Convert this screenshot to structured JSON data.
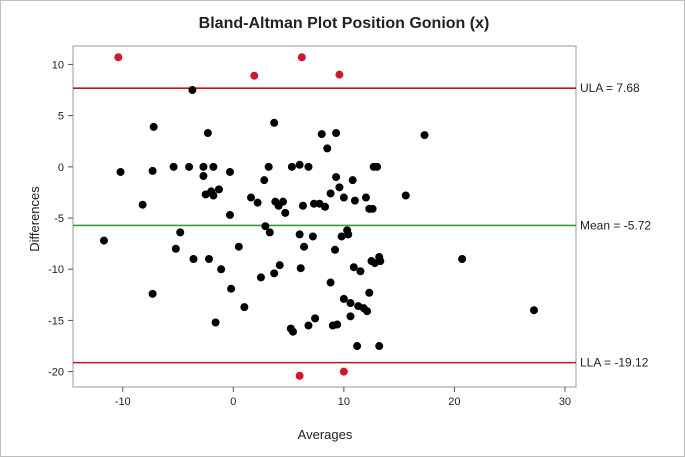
{
  "chart_data": {
    "type": "scatter",
    "title": "Bland-Altman Plot Position Gonion (x)",
    "xlabel": "Averages",
    "ylabel": "Differences",
    "xlim": [
      -14.5,
      31
    ],
    "ylim": [
      -21.5,
      11.8
    ],
    "xticks": [
      -10,
      0,
      10,
      20,
      30
    ],
    "yticks": [
      -20,
      -15,
      -10,
      -5,
      0,
      5,
      10
    ],
    "grid": false,
    "colors": {
      "inlier": "#000000",
      "outlier": "#cc1a2c",
      "limit_line": "#c0151c",
      "mean_line": "#3a9a3a"
    },
    "reference_lines": [
      {
        "label": "ULA = 7.68",
        "y": 7.68,
        "color": "#c0151c"
      },
      {
        "label": "Mean = -5.72",
        "y": -5.72,
        "color": "#3a9a3a"
      },
      {
        "label": "LLA = -19.12",
        "y": -19.12,
        "color": "#c0151c"
      }
    ],
    "series": [
      {
        "color": "#000000",
        "points": [
          [
            -11.7,
            -7.2
          ],
          [
            -10.2,
            -0.5
          ],
          [
            -8.2,
            -3.7
          ],
          [
            -7.3,
            -0.4
          ],
          [
            -7.2,
            3.9
          ],
          [
            -7.3,
            -12.4
          ],
          [
            -5.4,
            0.0
          ],
          [
            -5.2,
            -8.0
          ],
          [
            -4.8,
            -6.4
          ],
          [
            -4.0,
            0.0
          ],
          [
            -3.6,
            -9.0
          ],
          [
            -3.7,
            7.5
          ],
          [
            -2.7,
            0.0
          ],
          [
            -2.7,
            -0.9
          ],
          [
            -2.5,
            -2.7
          ],
          [
            -2.3,
            3.3
          ],
          [
            -2.2,
            -9.0
          ],
          [
            -2.0,
            -2.4
          ],
          [
            -1.8,
            0.0
          ],
          [
            -1.8,
            -2.8
          ],
          [
            -1.6,
            -15.2
          ],
          [
            -1.3,
            -2.2
          ],
          [
            -1.1,
            -10.0
          ],
          [
            -0.3,
            -0.5
          ],
          [
            -0.3,
            -4.7
          ],
          [
            -0.2,
            -11.9
          ],
          [
            0.5,
            -7.8
          ],
          [
            1.0,
            -13.7
          ],
          [
            1.6,
            -3.0
          ],
          [
            2.2,
            -3.5
          ],
          [
            2.5,
            -10.8
          ],
          [
            2.8,
            -1.3
          ],
          [
            2.9,
            -5.8
          ],
          [
            3.2,
            0.0
          ],
          [
            3.3,
            -6.4
          ],
          [
            3.7,
            4.3
          ],
          [
            3.7,
            -10.4
          ],
          [
            3.8,
            -3.4
          ],
          [
            4.1,
            -3.8
          ],
          [
            4.2,
            -9.6
          ],
          [
            4.5,
            -3.4
          ],
          [
            4.7,
            -4.5
          ],
          [
            5.2,
            -15.8
          ],
          [
            5.4,
            -16.1
          ],
          [
            5.3,
            0.0
          ],
          [
            6.0,
            0.2
          ],
          [
            6.0,
            -6.6
          ],
          [
            6.1,
            -9.9
          ],
          [
            6.3,
            -3.8
          ],
          [
            6.4,
            -7.8
          ],
          [
            6.8,
            0.0
          ],
          [
            6.8,
            -15.5
          ],
          [
            7.2,
            -6.8
          ],
          [
            7.3,
            -3.6
          ],
          [
            7.4,
            -14.8
          ],
          [
            7.8,
            -3.6
          ],
          [
            8.0,
            3.2
          ],
          [
            8.3,
            -3.9
          ],
          [
            8.5,
            1.8
          ],
          [
            8.8,
            -11.3
          ],
          [
            8.8,
            -2.6
          ],
          [
            9.0,
            -15.5
          ],
          [
            9.2,
            -8.1
          ],
          [
            9.3,
            3.3
          ],
          [
            9.3,
            -1.0
          ],
          [
            9.4,
            -15.4
          ],
          [
            9.6,
            -2.0
          ],
          [
            9.8,
            -6.8
          ],
          [
            10.0,
            -3.0
          ],
          [
            10.0,
            -12.9
          ],
          [
            10.3,
            -6.2
          ],
          [
            10.4,
            -6.6
          ],
          [
            10.6,
            -14.6
          ],
          [
            10.6,
            -13.3
          ],
          [
            10.8,
            -1.3
          ],
          [
            10.9,
            -9.8
          ],
          [
            11.0,
            -3.3
          ],
          [
            11.2,
            -17.5
          ],
          [
            11.3,
            -13.6
          ],
          [
            11.5,
            -10.2
          ],
          [
            11.8,
            -13.8
          ],
          [
            12.0,
            -3.0
          ],
          [
            12.1,
            -14.1
          ],
          [
            12.3,
            -12.3
          ],
          [
            12.3,
            -4.1
          ],
          [
            12.5,
            -9.2
          ],
          [
            12.6,
            -4.1
          ],
          [
            12.7,
            0.0
          ],
          [
            12.8,
            -9.4
          ],
          [
            13.0,
            -0.0
          ],
          [
            13.2,
            -8.8
          ],
          [
            13.3,
            -9.2
          ],
          [
            13.2,
            -17.5
          ],
          [
            15.6,
            -2.8
          ],
          [
            17.3,
            3.1
          ],
          [
            20.7,
            -9.0
          ],
          [
            27.2,
            -14.0
          ]
        ]
      },
      {
        "color": "#cc1a2c",
        "points": [
          [
            -10.4,
            10.7
          ],
          [
            1.9,
            8.9
          ],
          [
            6.2,
            10.7
          ],
          [
            9.6,
            9.0
          ],
          [
            6.0,
            -20.4
          ],
          [
            10.0,
            -20.0
          ]
        ]
      }
    ]
  }
}
